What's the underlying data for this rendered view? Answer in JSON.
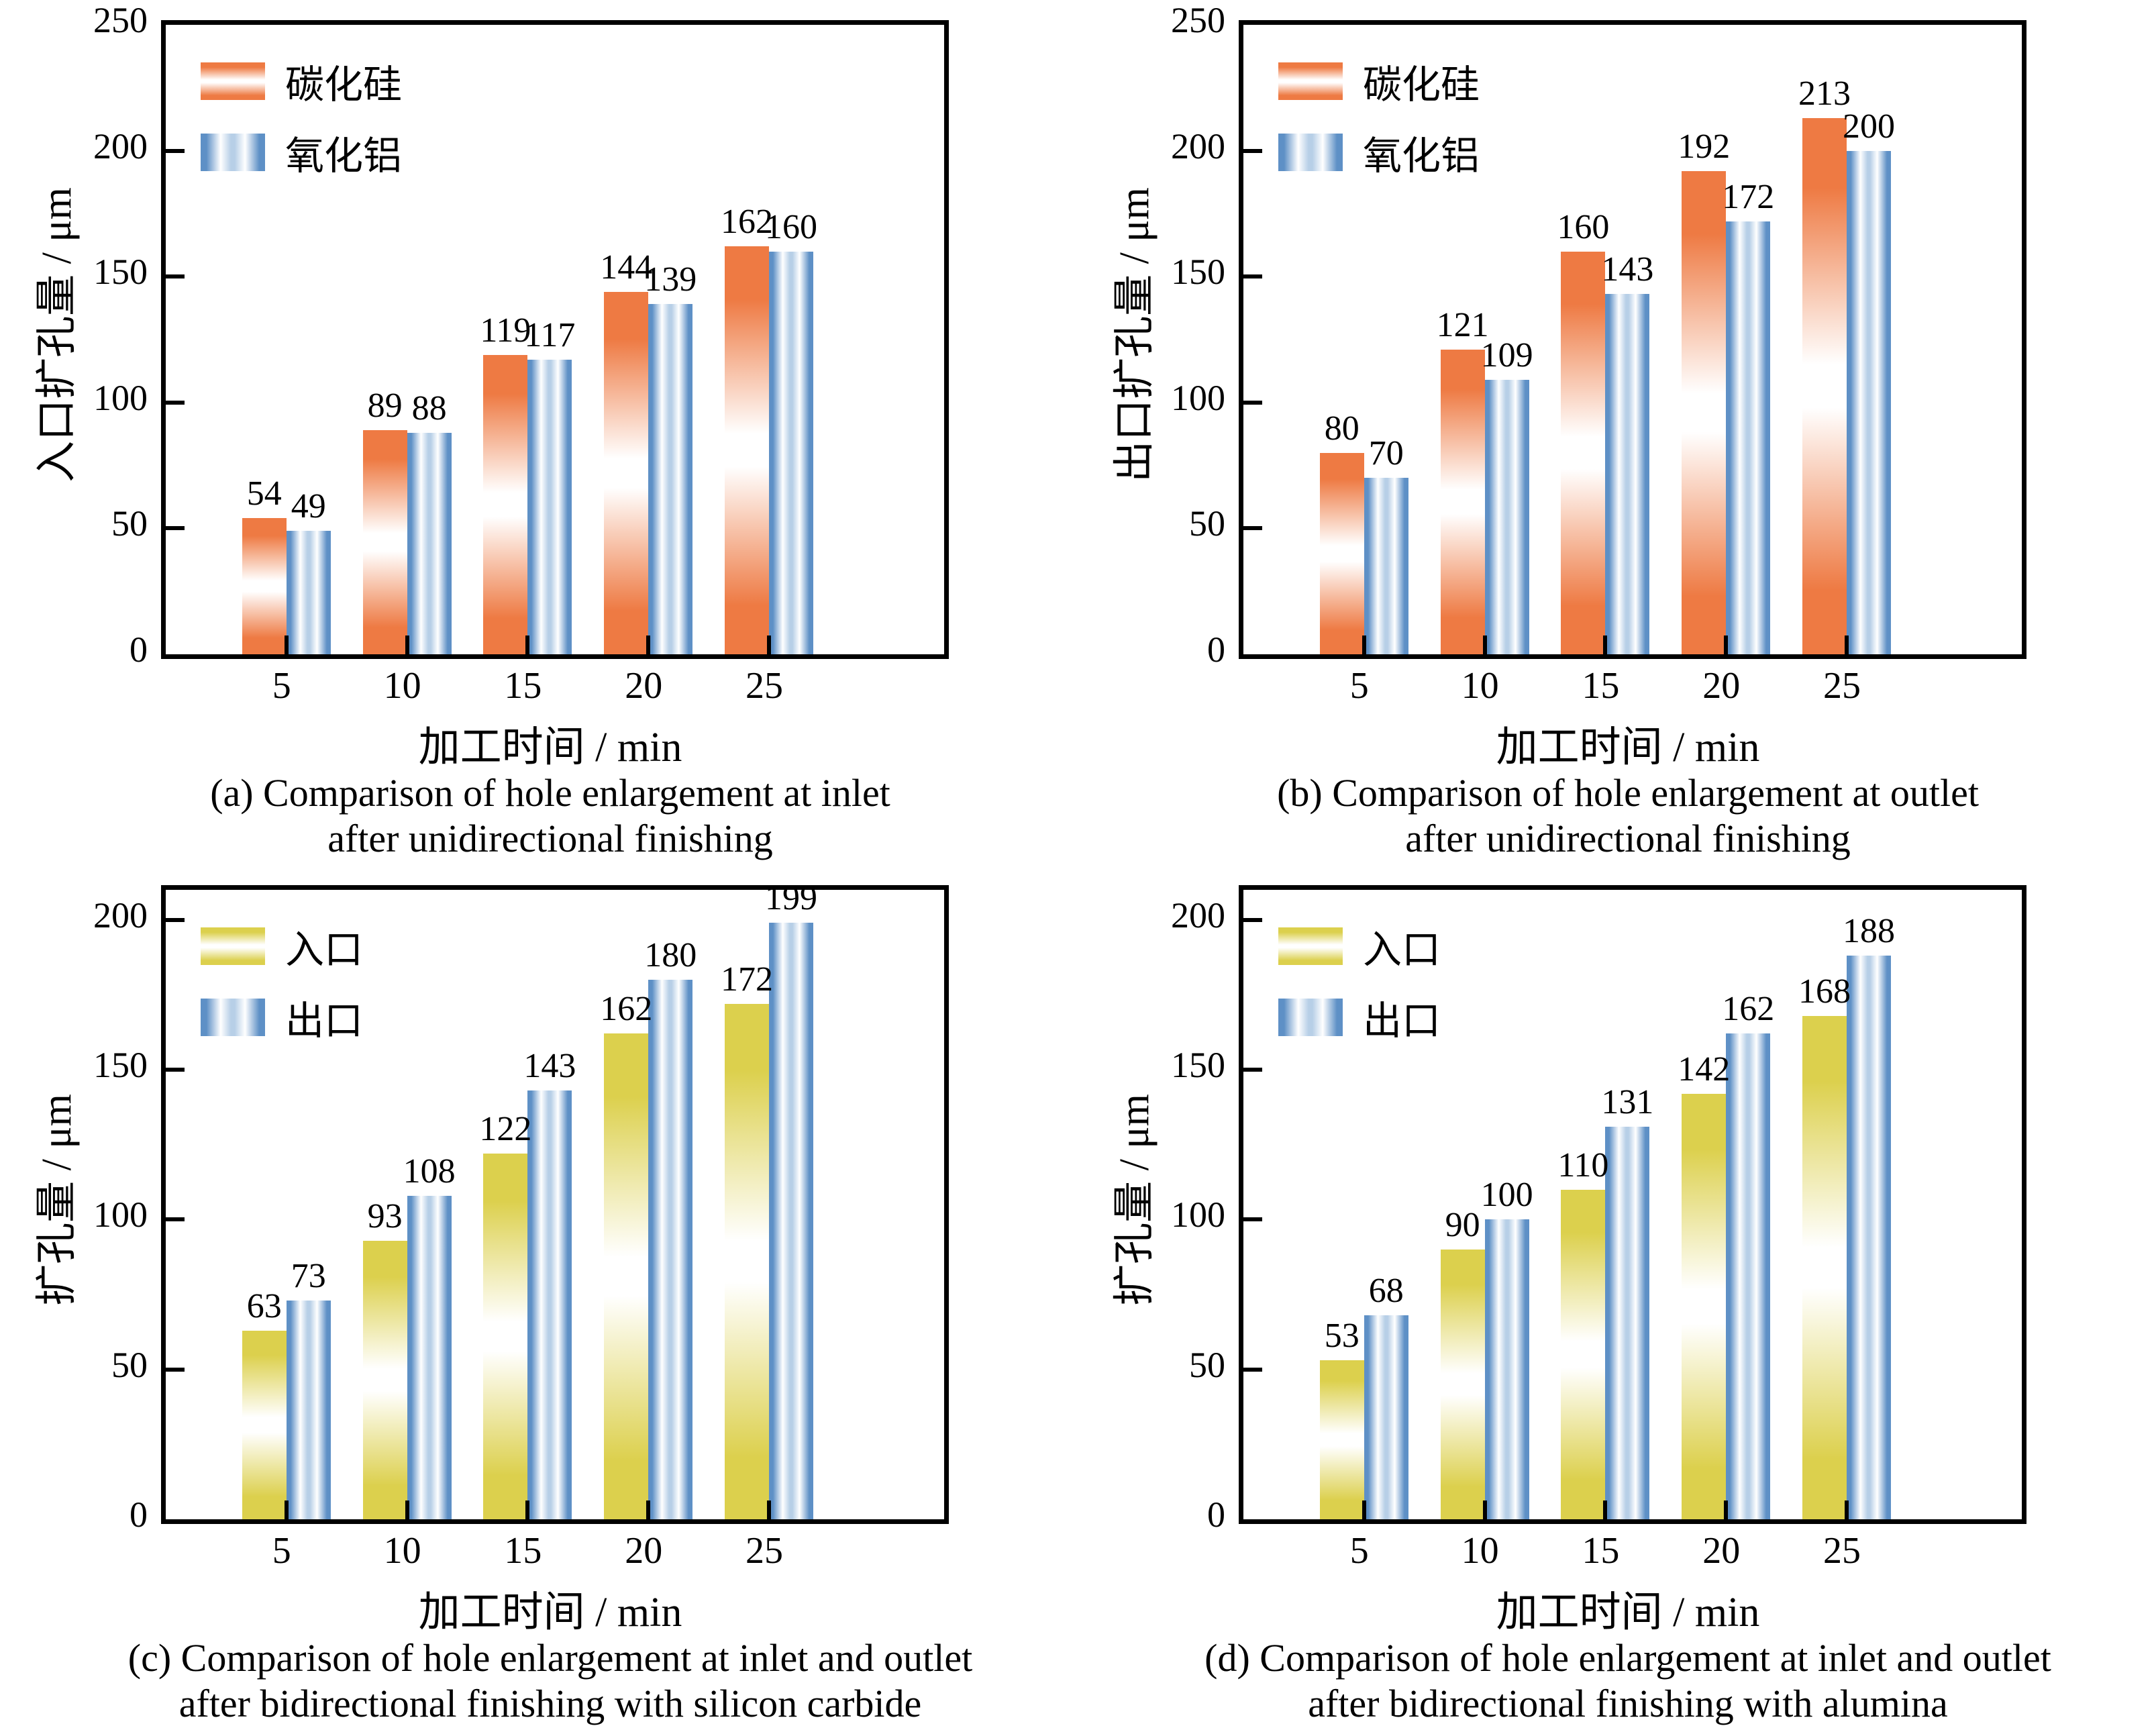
{
  "figure": {
    "background": "#ffffff",
    "layout": "2x2 grid of bar charts"
  },
  "colors": {
    "silicon_carbide_orange": "#ee7a43",
    "alumina_blue": "#5e90c6",
    "blue_highlight": "#b7cfe7",
    "inlet_yellow": "#dcd04d",
    "axis_black": "#000000"
  },
  "chart_data": [
    {
      "panel": "a",
      "type": "bar",
      "ylabel": "入口扩孔量 / μm",
      "xlabel": "加工时间 / min",
      "ylim": [
        0,
        250
      ],
      "yticks": [
        0,
        50,
        100,
        150,
        200,
        250
      ],
      "categories": [
        5,
        10,
        15,
        20,
        25
      ],
      "grid": false,
      "legend_position": "top-left",
      "series": [
        {
          "name": "碳化硅",
          "style": "orange",
          "values": [
            54,
            89,
            119,
            144,
            162
          ]
        },
        {
          "name": "氧化铝",
          "style": "blue",
          "values": [
            49,
            88,
            117,
            139,
            160
          ]
        }
      ],
      "caption_line1": "(a) Comparison of hole enlargement at inlet",
      "caption_line2": "after unidirectional finishing"
    },
    {
      "panel": "b",
      "type": "bar",
      "ylabel": "出口扩孔量 / μm",
      "xlabel": "加工时间 / min",
      "ylim": [
        0,
        250
      ],
      "yticks": [
        0,
        50,
        100,
        150,
        200,
        250
      ],
      "categories": [
        5,
        10,
        15,
        20,
        25
      ],
      "grid": false,
      "legend_position": "top-left",
      "series": [
        {
          "name": "碳化硅",
          "style": "orange",
          "values": [
            80,
            121,
            160,
            192,
            213
          ]
        },
        {
          "name": "氧化铝",
          "style": "blue",
          "values": [
            70,
            109,
            143,
            172,
            200
          ]
        }
      ],
      "caption_line1": "(b) Comparison of hole enlargement at outlet",
      "caption_line2": "after unidirectional finishing"
    },
    {
      "panel": "c",
      "type": "bar",
      "ylabel": "扩孔量 / μm",
      "xlabel": "加工时间 / min",
      "ylim": [
        0,
        210
      ],
      "yticks": [
        0,
        50,
        100,
        150,
        200
      ],
      "categories": [
        5,
        10,
        15,
        20,
        25
      ],
      "grid": false,
      "legend_position": "top-left",
      "series": [
        {
          "name": "入口",
          "style": "yellow",
          "values": [
            63,
            93,
            122,
            162,
            172
          ]
        },
        {
          "name": "出口",
          "style": "blue",
          "values": [
            73,
            108,
            143,
            180,
            199
          ]
        }
      ],
      "caption_line1": "(c) Comparison of hole enlargement at inlet and outlet",
      "caption_line2": "after bidirectional finishing with silicon carbide"
    },
    {
      "panel": "d",
      "type": "bar",
      "ylabel": "扩孔量 / μm",
      "xlabel": "加工时间 / min",
      "ylim": [
        0,
        210
      ],
      "yticks": [
        0,
        50,
        100,
        150,
        200
      ],
      "categories": [
        5,
        10,
        15,
        20,
        25
      ],
      "grid": false,
      "legend_position": "top-left",
      "series": [
        {
          "name": "入口",
          "style": "yellow",
          "values": [
            53,
            90,
            110,
            142,
            168
          ]
        },
        {
          "name": "出口",
          "style": "blue",
          "values": [
            68,
            100,
            131,
            162,
            188
          ]
        }
      ],
      "caption_line1": "(d) Comparison of hole enlargement at inlet and outlet",
      "caption_line2": "after bidirectional finishing with alumina"
    }
  ]
}
